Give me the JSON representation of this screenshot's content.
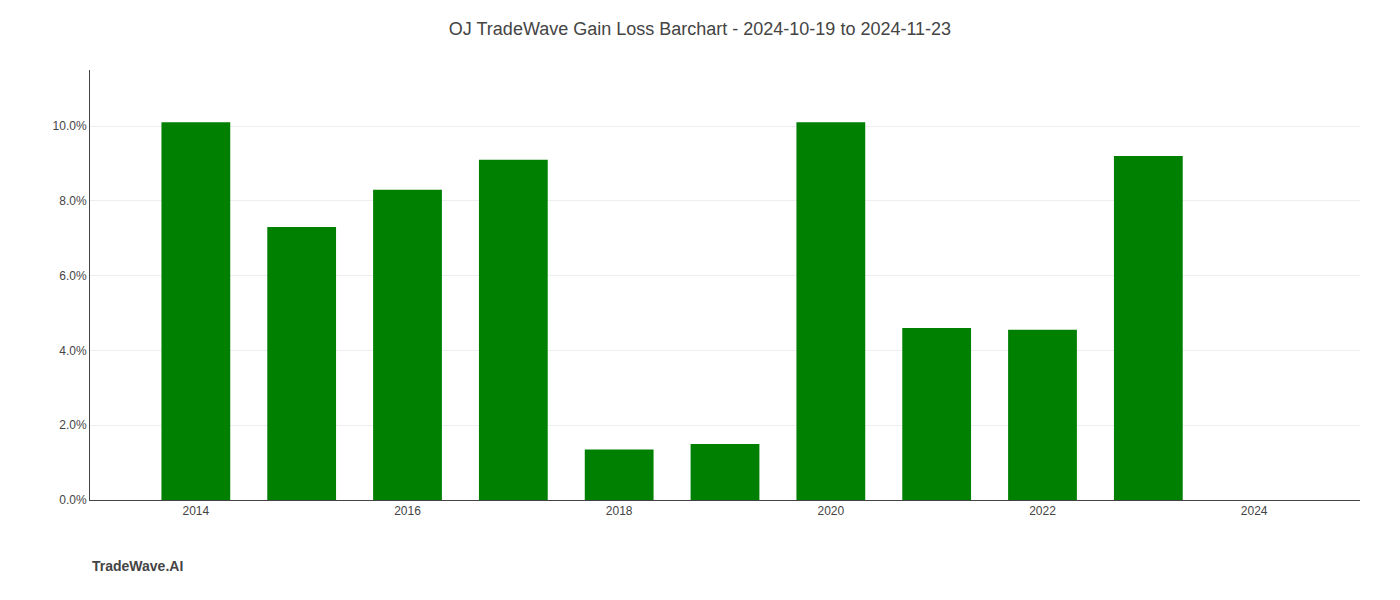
{
  "chart_data": {
    "type": "bar",
    "title": "OJ TradeWave Gain Loss Barchart - 2024-10-19 to 2024-11-23",
    "annotations": [
      "TradeWave.AI"
    ],
    "x": [
      2014,
      2015,
      2016,
      2017,
      2018,
      2019,
      2020,
      2021,
      2022,
      2023
    ],
    "values": [
      0.101,
      0.073,
      0.083,
      0.091,
      0.0135,
      0.015,
      0.101,
      0.046,
      0.0455,
      0.092
    ],
    "color": "#008000",
    "xlim": [
      2013.0,
      2025.0
    ],
    "xticks": [
      2014,
      2016,
      2018,
      2020,
      2022,
      2024
    ],
    "ylim": [
      0,
      0.115
    ],
    "yticks": [
      {
        "value": 0.0,
        "label": "0.0%"
      },
      {
        "value": 0.02,
        "label": "2.0%"
      },
      {
        "value": 0.04,
        "label": "4.0%"
      },
      {
        "value": 0.06,
        "label": "6.0%"
      },
      {
        "value": 0.08,
        "label": "8.0%"
      },
      {
        "value": 0.1,
        "label": "10.0%"
      }
    ],
    "grid": true
  }
}
